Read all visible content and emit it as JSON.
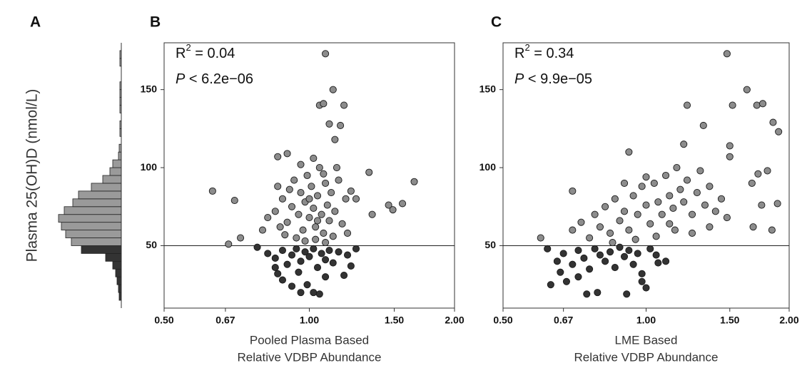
{
  "chart_data": [
    {
      "type": "histogram",
      "panel": "A",
      "ylabel": "Plasma 25(OH)D (nmol/L)",
      "orientation": "horizontal",
      "bins": [
        15,
        20,
        25,
        30,
        35,
        40,
        45,
        50,
        55,
        60,
        65,
        70,
        75,
        80,
        85,
        90,
        95,
        100,
        105,
        110,
        115,
        120,
        125,
        130,
        135,
        140,
        145,
        150,
        155,
        160,
        165,
        170,
        175
      ],
      "counts": [
        1.5,
        2,
        3,
        4,
        6,
        11,
        28,
        35,
        39,
        42,
        44,
        40,
        34,
        30,
        21,
        13,
        8,
        6,
        2,
        1.5,
        0,
        1,
        1,
        0,
        1,
        1,
        1,
        1,
        0,
        0,
        1,
        1
      ],
      "threshold": 50,
      "color_below": "#333333",
      "color_above": "#9a9a9a",
      "xlim": [
        0,
        50
      ],
      "ylim": [
        10,
        180
      ]
    },
    {
      "type": "scatter",
      "panel": "B",
      "xlabel": [
        "Pooled Plasma Based",
        "Relative VDBP Abundance"
      ],
      "r2_symbol": "R",
      "r2_sup": "2",
      "r2_text": " = 0.04",
      "p_symbol": "P",
      "p_text": " < 6.2e−06",
      "x": [
        0.63,
        0.68,
        0.7,
        0.72,
        1.08,
        1.12,
        1.05,
        1.07,
        1.18,
        1.1,
        1.16,
        1.13,
        0.86,
        0.9,
        1.33,
        1.46,
        1.49,
        1.56,
        1.65,
        1.35,
        1.22,
        1.25,
        0.96,
        1.02,
        1.05,
        0.92,
        0.99,
        1.18,
        1.22,
        0.85,
        0.88,
        0.8,
        0.82,
        0.85,
        0.86,
        0.88,
        0.9,
        0.92,
        0.93,
        0.95,
        0.96,
        0.97,
        0.98,
        0.99,
        1.0,
        1.01,
        1.02,
        1.03,
        1.04,
        1.05,
        1.06,
        1.07,
        1.08,
        1.09,
        1.1,
        1.11,
        1.12,
        1.13,
        1.15,
        1.17,
        1.19,
        1.2,
        0.94,
        0.98,
        1.03,
        1.08,
        0.89,
        0.96,
        1.02,
        1.07,
        0.91,
        1.0,
        1.04,
        0.87,
        1.14,
        0.78,
        0.82,
        0.85,
        0.88,
        0.9,
        0.92,
        0.94,
        0.96,
        0.98,
        1.0,
        1.02,
        1.04,
        1.06,
        1.08,
        1.1,
        1.12,
        1.15,
        1.2,
        0.86,
        0.95,
        1.08,
        1.25
      ],
      "y": [
        85,
        51,
        79,
        55,
        173,
        150,
        140,
        141,
        140,
        128,
        127,
        118,
        107,
        109,
        97,
        76,
        73,
        77,
        91,
        70,
        85,
        80,
        20,
        20,
        19,
        24,
        25,
        31,
        37,
        36,
        28,
        60,
        68,
        72,
        88,
        80,
        65,
        75,
        92,
        70,
        84,
        60,
        78,
        95,
        68,
        88,
        74,
        62,
        82,
        100,
        70,
        58,
        90,
        76,
        66,
        84,
        56,
        72,
        92,
        64,
        80,
        58,
        55,
        53,
        54,
        52,
        57,
        102,
        106,
        96,
        86,
        80,
        66,
        62,
        100,
        49,
        45,
        42,
        47,
        38,
        44,
        48,
        40,
        46,
        43,
        48,
        36,
        45,
        41,
        47,
        39,
        46,
        44,
        32,
        33,
        30,
        48
      ],
      "threshold": 50,
      "color_below": "#333333",
      "color_above": "#8c8c8c",
      "xscale": "log",
      "xlim": [
        0.5,
        2.0
      ],
      "xticks": [
        {
          "value": 0.5,
          "label": "0.50"
        },
        0.67,
        {
          "value": 1.0,
          "label": "1.00"
        },
        {
          "value": 1.5,
          "label": "1.50"
        },
        {
          "value": 2.0,
          "label": "2.00"
        }
      ],
      "ylim": [
        10,
        180
      ],
      "yticks": [
        50,
        100,
        150
      ]
    },
    {
      "type": "scatter",
      "panel": "C",
      "xlabel": [
        "LME Based",
        "Relative VDBP Abundance"
      ],
      "r2_symbol": "R",
      "r2_sup": "2",
      "r2_text": " = 0.34",
      "p_symbol": "P",
      "p_text": " < 9.9e−05",
      "x": [
        1.48,
        1.63,
        1.71,
        1.76,
        1.52,
        1.85,
        1.9,
        1.22,
        1.32,
        1.2,
        1.5,
        1.5,
        1.67,
        1.72,
        1.8,
        1.89,
        1.84,
        1.68,
        1.75,
        0.6,
        0.7,
        0.92,
        0.63,
        0.68,
        0.75,
        0.79,
        0.91,
        1.0,
        0.98,
        1.06,
        0.7,
        0.73,
        0.76,
        0.78,
        0.8,
        0.82,
        0.84,
        0.86,
        0.88,
        0.9,
        0.92,
        0.94,
        0.96,
        0.98,
        1.0,
        1.02,
        1.04,
        1.06,
        1.08,
        1.1,
        1.12,
        1.14,
        1.16,
        1.18,
        1.2,
        1.22,
        1.25,
        1.28,
        1.3,
        1.33,
        1.36,
        1.4,
        1.44,
        1.48,
        0.85,
        0.95,
        1.05,
        1.15,
        1.25,
        1.36,
        1.0,
        0.9,
        1.12,
        0.62,
        0.65,
        0.67,
        0.7,
        0.72,
        0.74,
        0.76,
        0.78,
        0.8,
        0.82,
        0.84,
        0.86,
        0.88,
        0.9,
        0.92,
        0.94,
        0.96,
        0.98,
        1.02,
        1.05,
        0.66,
        0.72,
        1.1
      ],
      "y": [
        173,
        150,
        140,
        141,
        140,
        129,
        123,
        140,
        127,
        115,
        107,
        114,
        90,
        96,
        98,
        77,
        60,
        62,
        76,
        55,
        85,
        110,
        25,
        27,
        19,
        20,
        19,
        23,
        27,
        39,
        60,
        65,
        55,
        70,
        62,
        75,
        58,
        80,
        66,
        72,
        60,
        82,
        70,
        88,
        76,
        64,
        90,
        78,
        70,
        95,
        82,
        74,
        100,
        86,
        78,
        92,
        70,
        84,
        98,
        76,
        88,
        72,
        80,
        68,
        52,
        54,
        56,
        60,
        58,
        62,
        94,
        90,
        64,
        48,
        40,
        45,
        38,
        47,
        42,
        35,
        48,
        44,
        40,
        46,
        36,
        49,
        43,
        47,
        38,
        45,
        32,
        48,
        44,
        33,
        30,
        40
      ],
      "threshold": 50,
      "color_below": "#333333",
      "color_above": "#8c8c8c",
      "xscale": "log",
      "xlim": [
        0.5,
        2.0
      ],
      "xticks": [
        {
          "value": 0.5,
          "label": "0.50"
        },
        0.67,
        {
          "value": 1.0,
          "label": "1.00"
        },
        {
          "value": 1.5,
          "label": "1.50"
        },
        {
          "value": 2.0,
          "label": "2.00"
        }
      ],
      "ylim": [
        10,
        180
      ],
      "yticks": [
        50,
        100,
        150
      ]
    }
  ]
}
